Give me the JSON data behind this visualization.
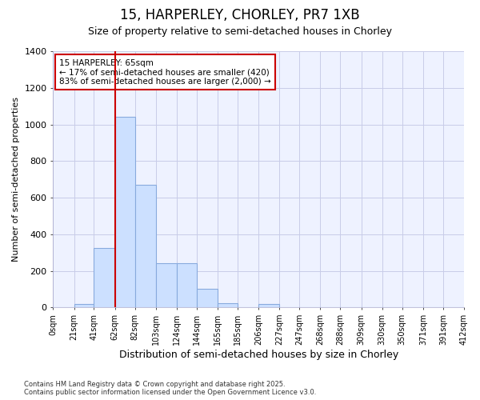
{
  "title1": "15, HARPERLEY, CHORLEY, PR7 1XB",
  "title2": "Size of property relative to semi-detached houses in Chorley",
  "xlabel": "Distribution of semi-detached houses by size in Chorley",
  "ylabel": "Number of semi-detached properties",
  "annotation_title": "15 HARPERLEY: 65sqm",
  "annotation_line1": "← 17% of semi-detached houses are smaller (420)",
  "annotation_line2": "83% of semi-detached houses are larger (2,000) →",
  "footer1": "Contains HM Land Registry data © Crown copyright and database right 2025.",
  "footer2": "Contains public sector information licensed under the Open Government Licence v3.0.",
  "property_size_sqm": 65,
  "bin_edges": [
    0,
    21,
    41,
    62,
    82,
    103,
    124,
    144,
    165,
    185,
    206,
    227,
    247,
    268,
    288,
    309,
    330,
    350,
    371,
    391,
    412
  ],
  "bar_values": [
    0,
    20,
    325,
    1040,
    670,
    240,
    240,
    100,
    25,
    0,
    20,
    0,
    0,
    0,
    0,
    0,
    0,
    0,
    0,
    0
  ],
  "bar_color": "#cce0ff",
  "bar_edge_color": "#88aadd",
  "red_line_x": 62,
  "vline_color": "#cc0000",
  "background_color": "#ffffff",
  "plot_bg_color": "#eef2ff",
  "grid_color": "#c8cce8",
  "ylim": [
    0,
    1400
  ],
  "yticks": [
    0,
    200,
    400,
    600,
    800,
    1000,
    1200,
    1400
  ],
  "title1_fontsize": 12,
  "title2_fontsize": 9,
  "xlabel_fontsize": 9,
  "ylabel_fontsize": 8
}
